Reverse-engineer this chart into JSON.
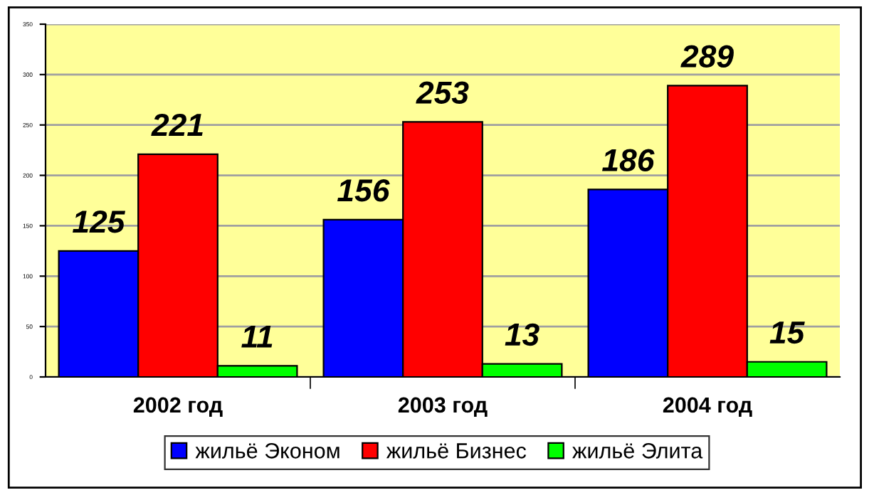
{
  "chart_data": {
    "type": "bar",
    "categories": [
      "2002 год",
      "2003 год",
      "2004 год"
    ],
    "series": [
      {
        "name": "жильё Эконом",
        "color": "#0000ff",
        "values": [
          125,
          156,
          186
        ]
      },
      {
        "name": "жильё Бизнес",
        "color": "#ff0000",
        "values": [
          221,
          253,
          289
        ]
      },
      {
        "name": "жильё Элита",
        "color": "#00ff00",
        "values": [
          11,
          13,
          15
        ]
      }
    ],
    "ylim": [
      0,
      350
    ],
    "yticks": [
      0,
      50,
      100,
      150,
      200,
      250,
      300,
      350
    ],
    "grid": "y",
    "legend": "bottom",
    "data_labels": true
  }
}
